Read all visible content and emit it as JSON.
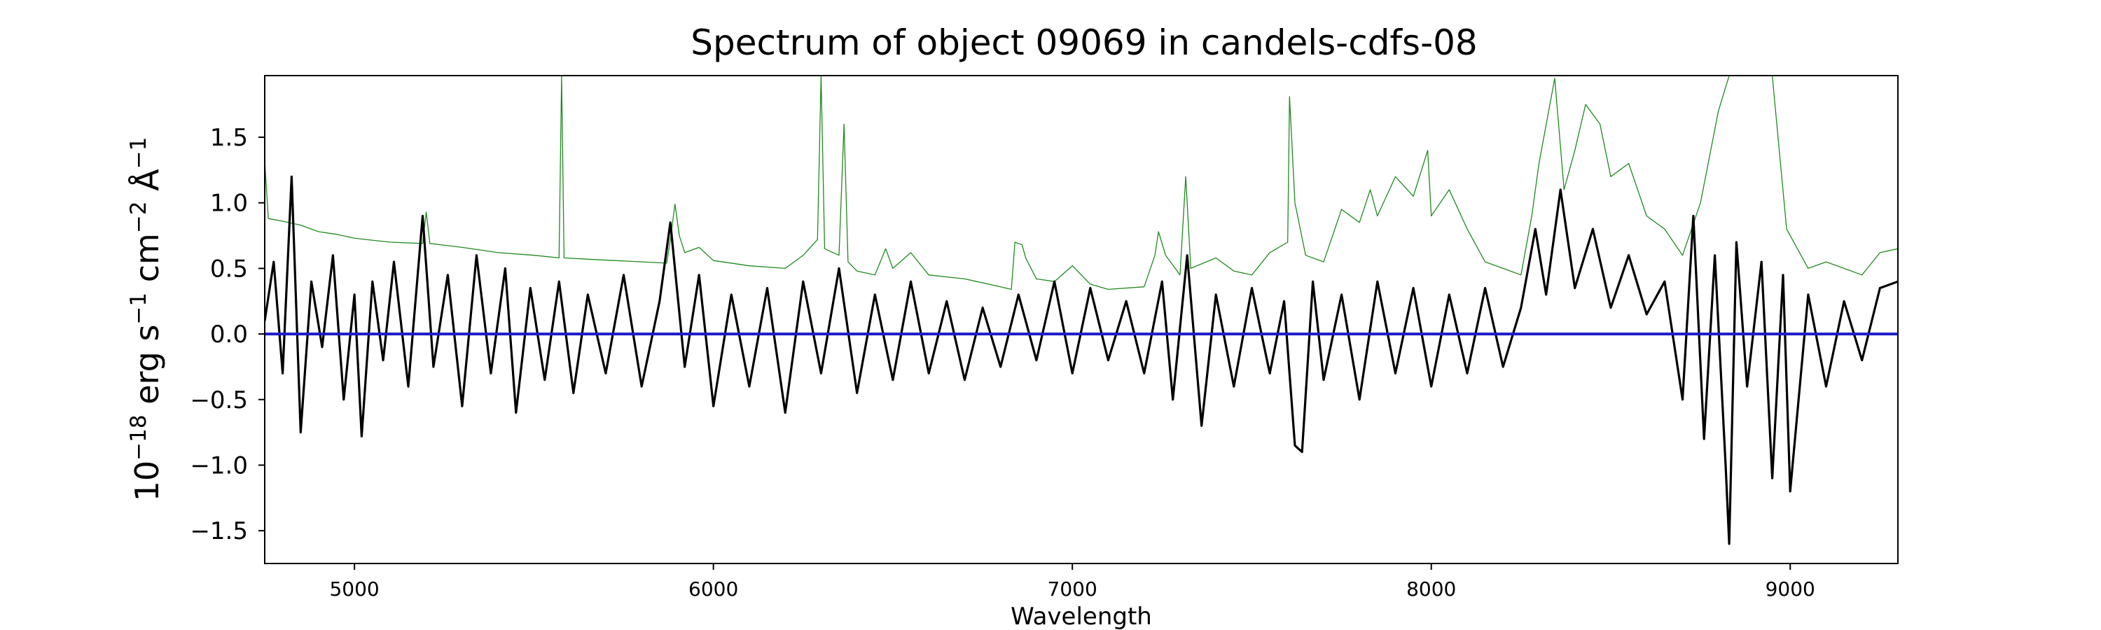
{
  "chart_data": {
    "type": "line",
    "title": "Spectrum of object 09069 in candels-cdfs-08",
    "xlabel": "Wavelength",
    "ylabel": "10⁻¹⁸ erg s⁻¹ cm⁻² Å⁻¹",
    "ylabel_parts": {
      "base1": "10",
      "exp1": "−18",
      "base2": " erg s",
      "exp2": "−1",
      "base3": " cm",
      "exp3": "−2",
      "base4": " Å",
      "exp4": "−1"
    },
    "xlim": [
      4750,
      9300
    ],
    "ylim": [
      -1.75,
      1.97
    ],
    "xticks": [
      5000,
      6000,
      7000,
      8000,
      9000
    ],
    "xtick_labels": [
      "5000",
      "6000",
      "7000",
      "8000",
      "9000"
    ],
    "yticks": [
      -1.5,
      -1.0,
      -0.5,
      0.0,
      0.5,
      1.0,
      1.5
    ],
    "ytick_labels": [
      "−1.5",
      "−1.0",
      "−0.5",
      "0.0",
      "0.5",
      "1.0",
      "1.5"
    ],
    "grid": false,
    "series": [
      {
        "role": "error",
        "color": "#1f8a1f",
        "style": "thin",
        "points": [
          [
            4750,
            1.32
          ],
          [
            4760,
            0.88
          ],
          [
            4800,
            0.86
          ],
          [
            4850,
            0.83
          ],
          [
            4900,
            0.78
          ],
          [
            4950,
            0.76
          ],
          [
            5000,
            0.73
          ],
          [
            5100,
            0.7
          ],
          [
            5190,
            0.69
          ],
          [
            5200,
            0.93
          ],
          [
            5210,
            0.69
          ],
          [
            5300,
            0.66
          ],
          [
            5400,
            0.62
          ],
          [
            5500,
            0.6
          ],
          [
            5570,
            0.58
          ],
          [
            5577,
            1.97
          ],
          [
            5584,
            0.58
          ],
          [
            5650,
            0.57
          ],
          [
            5800,
            0.55
          ],
          [
            5870,
            0.54
          ],
          [
            5880,
            0.72
          ],
          [
            5893,
            0.99
          ],
          [
            5905,
            0.75
          ],
          [
            5920,
            0.62
          ],
          [
            5960,
            0.66
          ],
          [
            6000,
            0.56
          ],
          [
            6100,
            0.52
          ],
          [
            6200,
            0.5
          ],
          [
            6250,
            0.6
          ],
          [
            6290,
            0.72
          ],
          [
            6300,
            1.97
          ],
          [
            6310,
            0.65
          ],
          [
            6350,
            0.6
          ],
          [
            6364,
            1.6
          ],
          [
            6375,
            0.55
          ],
          [
            6400,
            0.48
          ],
          [
            6450,
            0.45
          ],
          [
            6480,
            0.65
          ],
          [
            6500,
            0.5
          ],
          [
            6550,
            0.62
          ],
          [
            6600,
            0.45
          ],
          [
            6700,
            0.42
          ],
          [
            6800,
            0.36
          ],
          [
            6830,
            0.34
          ],
          [
            6840,
            0.7
          ],
          [
            6860,
            0.68
          ],
          [
            6870,
            0.58
          ],
          [
            6900,
            0.42
          ],
          [
            6950,
            0.4
          ],
          [
            7000,
            0.52
          ],
          [
            7050,
            0.38
          ],
          [
            7100,
            0.34
          ],
          [
            7200,
            0.36
          ],
          [
            7230,
            0.6
          ],
          [
            7240,
            0.78
          ],
          [
            7260,
            0.6
          ],
          [
            7300,
            0.45
          ],
          [
            7316,
            1.2
          ],
          [
            7330,
            0.5
          ],
          [
            7400,
            0.58
          ],
          [
            7450,
            0.48
          ],
          [
            7500,
            0.45
          ],
          [
            7550,
            0.62
          ],
          [
            7600,
            0.7
          ],
          [
            7605,
            1.81
          ],
          [
            7620,
            1.0
          ],
          [
            7650,
            0.6
          ],
          [
            7700,
            0.55
          ],
          [
            7750,
            0.95
          ],
          [
            7800,
            0.85
          ],
          [
            7830,
            1.1
          ],
          [
            7850,
            0.9
          ],
          [
            7900,
            1.2
          ],
          [
            7950,
            1.05
          ],
          [
            7990,
            1.4
          ],
          [
            8000,
            0.9
          ],
          [
            8050,
            1.1
          ],
          [
            8100,
            0.8
          ],
          [
            8150,
            0.55
          ],
          [
            8200,
            0.5
          ],
          [
            8250,
            0.45
          ],
          [
            8280,
            0.9
          ],
          [
            8300,
            1.3
          ],
          [
            8344,
            1.95
          ],
          [
            8370,
            1.1
          ],
          [
            8400,
            1.4
          ],
          [
            8430,
            1.75
          ],
          [
            8470,
            1.6
          ],
          [
            8500,
            1.2
          ],
          [
            8550,
            1.3
          ],
          [
            8600,
            0.9
          ],
          [
            8650,
            0.8
          ],
          [
            8700,
            0.6
          ],
          [
            8750,
            1.0
          ],
          [
            8800,
            1.7
          ],
          [
            8830,
            1.97
          ],
          [
            8860,
            1.97
          ],
          [
            8880,
            1.97
          ],
          [
            8920,
            1.97
          ],
          [
            8950,
            1.97
          ],
          [
            8990,
            0.8
          ],
          [
            9050,
            0.5
          ],
          [
            9100,
            0.55
          ],
          [
            9150,
            0.5
          ],
          [
            9200,
            0.45
          ],
          [
            9250,
            0.62
          ],
          [
            9300,
            0.65
          ]
        ]
      },
      {
        "role": "flux",
        "color": "#000000",
        "style": "thick",
        "points": [
          [
            4750,
            0.1
          ],
          [
            4775,
            0.55
          ],
          [
            4800,
            -0.3
          ],
          [
            4825,
            1.2
          ],
          [
            4850,
            -0.75
          ],
          [
            4880,
            0.4
          ],
          [
            4910,
            -0.1
          ],
          [
            4940,
            0.6
          ],
          [
            4970,
            -0.5
          ],
          [
            5000,
            0.3
          ],
          [
            5020,
            -0.78
          ],
          [
            5050,
            0.4
          ],
          [
            5080,
            -0.2
          ],
          [
            5110,
            0.55
          ],
          [
            5150,
            -0.4
          ],
          [
            5190,
            0.9
          ],
          [
            5220,
            -0.25
          ],
          [
            5260,
            0.45
          ],
          [
            5300,
            -0.55
          ],
          [
            5340,
            0.6
          ],
          [
            5380,
            -0.3
          ],
          [
            5420,
            0.5
          ],
          [
            5450,
            -0.6
          ],
          [
            5490,
            0.35
          ],
          [
            5530,
            -0.35
          ],
          [
            5570,
            0.4
          ],
          [
            5610,
            -0.45
          ],
          [
            5650,
            0.3
          ],
          [
            5700,
            -0.3
          ],
          [
            5750,
            0.45
          ],
          [
            5800,
            -0.4
          ],
          [
            5850,
            0.25
          ],
          [
            5880,
            0.85
          ],
          [
            5920,
            -0.25
          ],
          [
            5960,
            0.45
          ],
          [
            6000,
            -0.55
          ],
          [
            6050,
            0.3
          ],
          [
            6100,
            -0.4
          ],
          [
            6150,
            0.35
          ],
          [
            6200,
            -0.6
          ],
          [
            6250,
            0.4
          ],
          [
            6300,
            -0.3
          ],
          [
            6350,
            0.5
          ],
          [
            6400,
            -0.45
          ],
          [
            6450,
            0.3
          ],
          [
            6500,
            -0.35
          ],
          [
            6550,
            0.4
          ],
          [
            6600,
            -0.3
          ],
          [
            6650,
            0.25
          ],
          [
            6700,
            -0.35
          ],
          [
            6750,
            0.2
          ],
          [
            6800,
            -0.25
          ],
          [
            6850,
            0.3
          ],
          [
            6900,
            -0.2
          ],
          [
            6950,
            0.4
          ],
          [
            7000,
            -0.3
          ],
          [
            7050,
            0.35
          ],
          [
            7100,
            -0.2
          ],
          [
            7150,
            0.25
          ],
          [
            7200,
            -0.3
          ],
          [
            7250,
            0.4
          ],
          [
            7280,
            -0.5
          ],
          [
            7320,
            0.6
          ],
          [
            7360,
            -0.7
          ],
          [
            7400,
            0.3
          ],
          [
            7450,
            -0.4
          ],
          [
            7500,
            0.35
          ],
          [
            7550,
            -0.3
          ],
          [
            7590,
            0.25
          ],
          [
            7620,
            -0.85
          ],
          [
            7640,
            -0.9
          ],
          [
            7670,
            0.4
          ],
          [
            7700,
            -0.35
          ],
          [
            7750,
            0.3
          ],
          [
            7800,
            -0.5
          ],
          [
            7850,
            0.4
          ],
          [
            7900,
            -0.3
          ],
          [
            7950,
            0.35
          ],
          [
            8000,
            -0.4
          ],
          [
            8050,
            0.3
          ],
          [
            8100,
            -0.3
          ],
          [
            8150,
            0.35
          ],
          [
            8200,
            -0.25
          ],
          [
            8250,
            0.2
          ],
          [
            8290,
            0.8
          ],
          [
            8320,
            0.3
          ],
          [
            8360,
            1.1
          ],
          [
            8400,
            0.35
          ],
          [
            8450,
            0.8
          ],
          [
            8500,
            0.2
          ],
          [
            8550,
            0.6
          ],
          [
            8600,
            0.15
          ],
          [
            8650,
            0.4
          ],
          [
            8700,
            -0.5
          ],
          [
            8730,
            0.9
          ],
          [
            8760,
            -0.8
          ],
          [
            8790,
            0.6
          ],
          [
            8820,
            -1.0
          ],
          [
            8830,
            -1.6
          ],
          [
            8850,
            0.7
          ],
          [
            8880,
            -0.4
          ],
          [
            8920,
            0.55
          ],
          [
            8950,
            -1.1
          ],
          [
            8980,
            0.45
          ],
          [
            9000,
            -1.2
          ],
          [
            9050,
            0.3
          ],
          [
            9100,
            -0.4
          ],
          [
            9150,
            0.25
          ],
          [
            9200,
            -0.2
          ],
          [
            9250,
            0.35
          ],
          [
            9300,
            0.4
          ]
        ]
      },
      {
        "role": "zero",
        "color": "#1d1dc8",
        "style": "medium",
        "points": [
          [
            4750,
            0.0
          ],
          [
            9300,
            0.0
          ]
        ]
      }
    ]
  }
}
